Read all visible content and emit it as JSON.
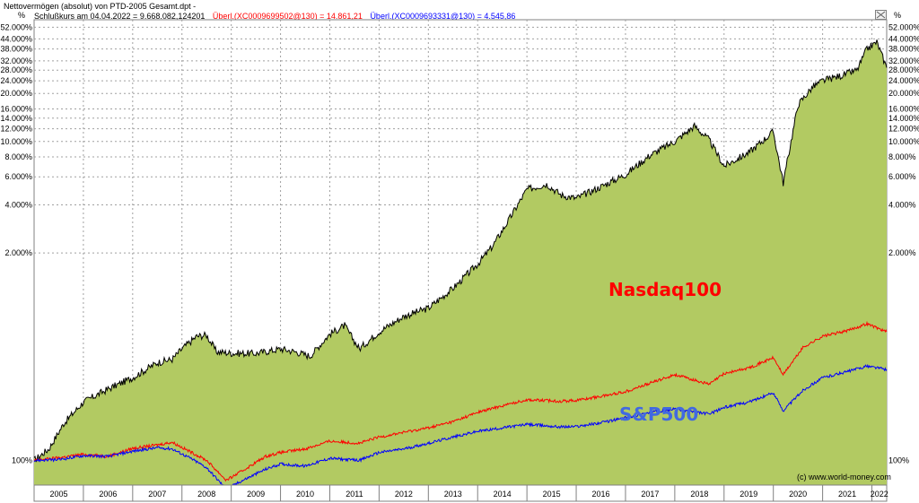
{
  "window": {
    "title": "Nettovermögen (absolut) von PTD-2005 Gesamt.dpt -"
  },
  "colors": {
    "fill": "#b2ca62",
    "portfolio_line": "#000000",
    "nasdaq": "#ff0000",
    "sp500": "#0000ff",
    "grid": "#a0a0a0"
  },
  "chart_data": {
    "type": "area",
    "log_scale": true,
    "grid": true,
    "ylabel_left": "%",
    "ylabel_right": "%",
    "legend": [
      {
        "text": "Schlußkurs am 04.04.2022 = 9.668.082,124201",
        "color": "#000000"
      },
      {
        "text": "Überl.(XC0009699502@130) = 14.861,21",
        "color": "#ff0000"
      },
      {
        "text": "Überl.(XC0009693331@130) = 4.545,86",
        "color": "#0000ff"
      }
    ],
    "x_range": [
      2005.0,
      2022.3
    ],
    "ylim": [
      70,
      58000
    ],
    "y_ticks": [
      {
        "value": 52000,
        "label": "52.000%"
      },
      {
        "value": 44000,
        "label": "44.000%"
      },
      {
        "value": 38000,
        "label": "38.000%"
      },
      {
        "value": 32000,
        "label": "32.000%"
      },
      {
        "value": 28000,
        "label": "28.000%"
      },
      {
        "value": 24000,
        "label": "24.000%"
      },
      {
        "value": 20000,
        "label": "20.000%"
      },
      {
        "value": 16000,
        "label": "16.000%"
      },
      {
        "value": 14000,
        "label": "14.000%"
      },
      {
        "value": 12000,
        "label": "12.000%"
      },
      {
        "value": 10000,
        "label": "10.000%"
      },
      {
        "value": 8000,
        "label": "8.000%"
      },
      {
        "value": 6000,
        "label": "6.000%"
      },
      {
        "value": 4000,
        "label": "4.000%"
      },
      {
        "value": 2000,
        "label": "2.000%"
      },
      {
        "value": 100,
        "label": "100%"
      }
    ],
    "x_ticks": [
      "2005",
      "2006",
      "2007",
      "2008",
      "2009",
      "2010",
      "2011",
      "2012",
      "2013",
      "2014",
      "2015",
      "2016",
      "2017",
      "2018",
      "2019",
      "2020",
      "2021",
      "2022"
    ],
    "series": [
      {
        "name": "Nettovermögen",
        "role": "portfolio",
        "x": [
          2005.0,
          2005.3,
          2005.6,
          2006.0,
          2006.5,
          2007.0,
          2007.5,
          2007.8,
          2008.0,
          2008.3,
          2008.5,
          2008.7,
          2009.0,
          2009.5,
          2010.0,
          2010.3,
          2010.6,
          2011.0,
          2011.3,
          2011.6,
          2012.0,
          2012.5,
          2013.0,
          2013.5,
          2014.0,
          2014.3,
          2014.6,
          2015.0,
          2015.4,
          2015.7,
          2016.0,
          2016.5,
          2017.0,
          2017.5,
          2018.0,
          2018.4,
          2018.7,
          2019.0,
          2019.5,
          2020.0,
          2020.2,
          2020.5,
          2020.8,
          2021.0,
          2021.4,
          2021.7,
          2021.9,
          2022.1,
          2022.3
        ],
        "values": [
          100,
          118,
          170,
          232,
          280,
          330,
          410,
          430,
          500,
          600,
          610,
          480,
          470,
          468,
          500,
          480,
          450,
          620,
          700,
          500,
          640,
          800,
          900,
          1200,
          1700,
          2200,
          3100,
          5000,
          5400,
          4600,
          4400,
          5200,
          6200,
          8200,
          10000,
          12500,
          10200,
          7000,
          8500,
          11500,
          5500,
          17000,
          22000,
          24000,
          26000,
          28000,
          38000,
          42000,
          29000
        ]
      },
      {
        "name": "Nasdaq100",
        "role": "benchmark",
        "x": [
          2005.0,
          2005.5,
          2006.0,
          2006.5,
          2007.0,
          2007.5,
          2007.8,
          2008.2,
          2008.5,
          2008.9,
          2009.2,
          2009.7,
          2010.0,
          2010.5,
          2011.0,
          2011.6,
          2012.0,
          2012.5,
          2013.0,
          2013.5,
          2014.0,
          2014.5,
          2015.0,
          2015.7,
          2016.0,
          2016.5,
          2017.0,
          2017.5,
          2018.0,
          2018.7,
          2019.0,
          2019.5,
          2020.0,
          2020.2,
          2020.6,
          2021.0,
          2021.5,
          2021.9,
          2022.3
        ],
        "values": [
          100,
          104,
          109,
          106,
          119,
          125,
          130,
          112,
          100,
          75,
          85,
          106,
          112,
          118,
          132,
          128,
          140,
          150,
          160,
          175,
          200,
          220,
          240,
          235,
          238,
          252,
          270,
          305,
          345,
          300,
          350,
          380,
          440,
          345,
          510,
          600,
          650,
          720,
          640
        ]
      },
      {
        "name": "S&P500",
        "role": "benchmark",
        "x": [
          2005.0,
          2005.5,
          2006.0,
          2006.5,
          2007.0,
          2007.5,
          2007.8,
          2008.2,
          2008.5,
          2008.9,
          2009.2,
          2009.7,
          2010.0,
          2010.5,
          2011.0,
          2011.6,
          2012.0,
          2012.5,
          2013.0,
          2013.5,
          2014.0,
          2014.5,
          2015.0,
          2015.7,
          2016.0,
          2016.5,
          2017.0,
          2017.5,
          2018.0,
          2018.7,
          2019.0,
          2019.5,
          2020.0,
          2020.2,
          2020.6,
          2021.0,
          2021.5,
          2021.9,
          2022.3
        ],
        "values": [
          100,
          101,
          107,
          106,
          114,
          120,
          118,
          102,
          90,
          66,
          74,
          88,
          95,
          92,
          103,
          100,
          112,
          118,
          128,
          140,
          152,
          160,
          168,
          162,
          163,
          172,
          185,
          200,
          210,
          195,
          215,
          232,
          265,
          205,
          275,
          330,
          360,
          390,
          372
        ]
      }
    ],
    "annotations": [
      {
        "text": "Nasdaq100",
        "color": "#ff0000"
      },
      {
        "text": "S&P500",
        "color": "#4169e1"
      }
    ],
    "credit": "(c) www.world-money.com"
  }
}
